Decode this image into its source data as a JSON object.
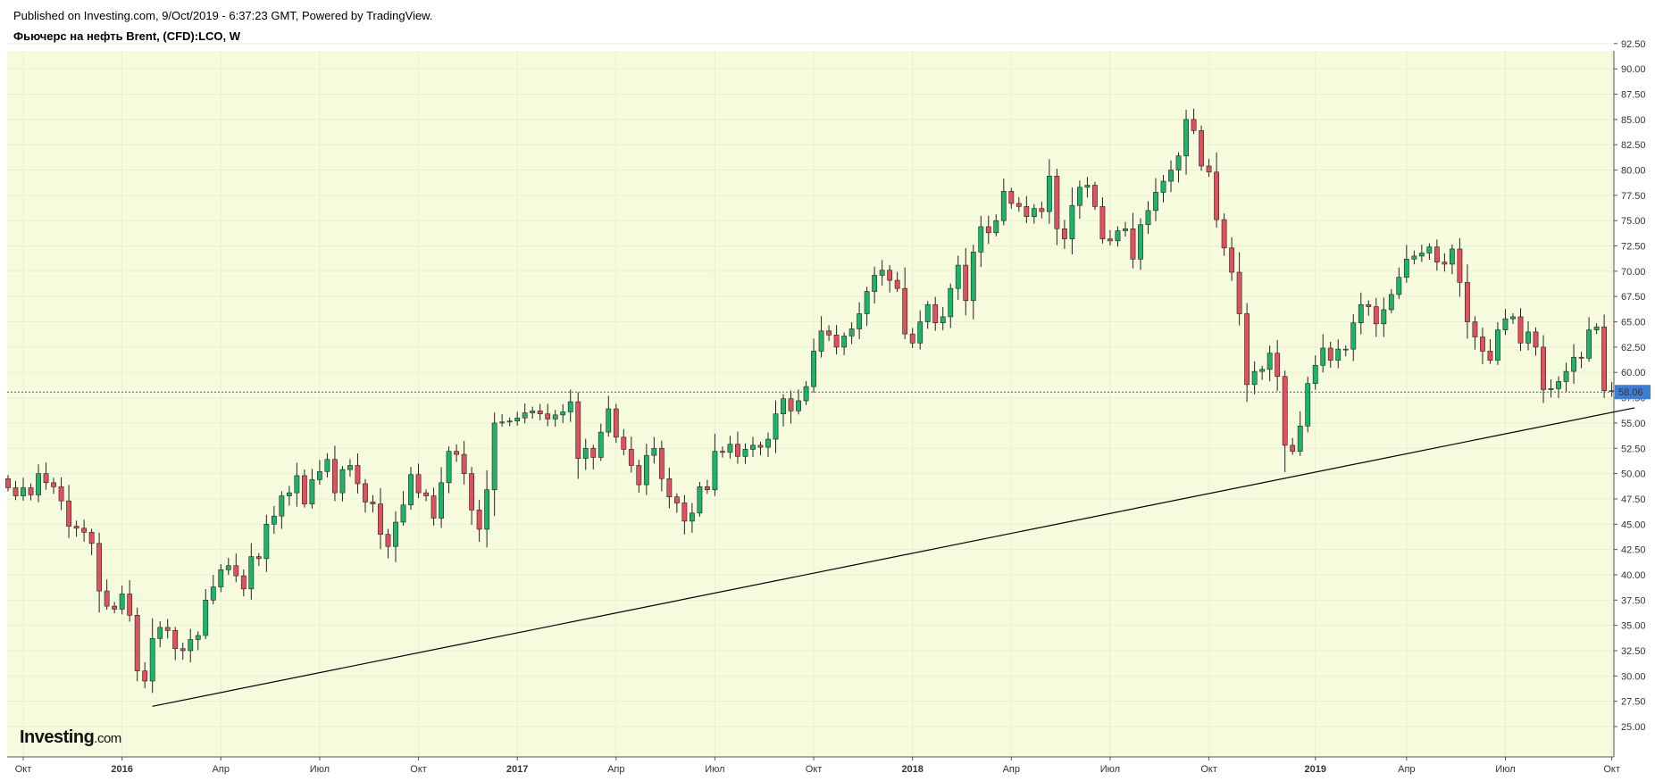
{
  "header": {
    "published_line": "Published on Investing.com, 9/Oct/2019 - 6:37:23 GMT, Powered by TradingView.",
    "symbol_line": "Фьючерс на нефть Brent, (CFD):LCO, W"
  },
  "logo": {
    "main": "Investing",
    "suffix": ".com"
  },
  "colors": {
    "background": "#f5fbdc",
    "bull": "#1eb36a",
    "bear": "#e0525b",
    "grid": "#e9efd2",
    "price_line": "#3c50c8",
    "price_label_bg": "#3c7dd8",
    "trendline": "#000000"
  },
  "chart_data": {
    "type": "candlestick",
    "timeframe": "W",
    "current_price": {
      "value": 58.06,
      "label": "58.06"
    },
    "y_axis": {
      "range": [
        23.5,
        94.5
      ],
      "ticks": [
        "25.00",
        "27.50",
        "30.00",
        "32.50",
        "35.00",
        "37.50",
        "40.00",
        "42.50",
        "45.00",
        "47.50",
        "50.00",
        "52.50",
        "55.00",
        "57.50",
        "60.00",
        "62.50",
        "65.00",
        "67.50",
        "70.00",
        "72.50",
        "75.00",
        "77.50",
        "80.00",
        "82.50",
        "85.00",
        "87.50",
        "90.00",
        "92.50"
      ]
    },
    "x_axis": {
      "first_week": "2015-09-21",
      "ticks": [
        {
          "label": "Окт",
          "bold": false,
          "week": 2
        },
        {
          "label": "2016",
          "bold": true,
          "week": 15
        },
        {
          "label": "Апр",
          "bold": false,
          "week": 28
        },
        {
          "label": "Июл",
          "bold": false,
          "week": 41
        },
        {
          "label": "Окт",
          "bold": false,
          "week": 54
        },
        {
          "label": "2017",
          "bold": true,
          "week": 67
        },
        {
          "label": "Апр",
          "bold": false,
          "week": 80
        },
        {
          "label": "Июл",
          "bold": false,
          "week": 93
        },
        {
          "label": "Окт",
          "bold": false,
          "week": 106
        },
        {
          "label": "2018",
          "bold": true,
          "week": 119
        },
        {
          "label": "Апр",
          "bold": false,
          "week": 132
        },
        {
          "label": "Июл",
          "bold": false,
          "week": 145
        },
        {
          "label": "Окт",
          "bold": false,
          "week": 158
        },
        {
          "label": "2019",
          "bold": true,
          "week": 172
        },
        {
          "label": "Апр",
          "bold": false,
          "week": 184
        },
        {
          "label": "Июл",
          "bold": false,
          "week": 197
        },
        {
          "label": "Окт",
          "bold": false,
          "week": 211
        }
      ]
    },
    "trendline": {
      "start": {
        "week": 19,
        "price": 27.0
      },
      "end": {
        "week": 214,
        "price": 56.5
      }
    },
    "closes": [
      48.6,
      47.8,
      48.6,
      47.9,
      50.0,
      49.1,
      48.7,
      47.3,
      44.8,
      44.6,
      44.2,
      43.1,
      38.4,
      36.9,
      36.6,
      38.1,
      36.0,
      30.5,
      29.5,
      33.7,
      34.8,
      34.5,
      32.7,
      32.5,
      33.6,
      34.0,
      37.5,
      38.8,
      40.5,
      40.9,
      39.9,
      38.6,
      41.8,
      41.6,
      45.0,
      45.8,
      47.8,
      48.1,
      49.8,
      47.0,
      49.4,
      50.2,
      51.4,
      48.1,
      50.4,
      50.8,
      49.0,
      47.2,
      47.0,
      44.0,
      42.8,
      45.2,
      46.9,
      49.9,
      48.1,
      47.8,
      45.6,
      49.1,
      52.2,
      51.9,
      50.0,
      46.4,
      44.5,
      48.4,
      55.0,
      55.1,
      55.2,
      55.5,
      56.0,
      56.2,
      55.9,
      55.4,
      55.8,
      56.1,
      57.1,
      51.5,
      52.5,
      51.6,
      54.1,
      56.4,
      53.6,
      52.4,
      50.8,
      48.9,
      51.8,
      52.5,
      49.5,
      47.7,
      47.1,
      45.3,
      46.1,
      48.7,
      48.4,
      52.2,
      52.1,
      52.9,
      51.7,
      52.4,
      52.8,
      52.6,
      53.4,
      55.9,
      57.4,
      56.2,
      57.2,
      58.6,
      62.1,
      64.1,
      63.7,
      62.5,
      63.6,
      64.3,
      65.8,
      68.0,
      69.6,
      70.1,
      69.1,
      68.3,
      63.8,
      62.9,
      65.0,
      66.7,
      64.9,
      65.5,
      68.3,
      70.6,
      67.1,
      71.9,
      74.4,
      73.8,
      75.0,
      77.9,
      76.7,
      76.4,
      75.4,
      76.2,
      75.9,
      79.4,
      74.2,
      73.2,
      76.5,
      78.3,
      78.5,
      76.4,
      73.2,
      73.0,
      74.0,
      74.2,
      71.2,
      74.6,
      76.0,
      77.8,
      78.9,
      80.0,
      81.4,
      85.0,
      83.9,
      80.4,
      79.8,
      75.1,
      72.3,
      69.9,
      65.8,
      58.8,
      60.1,
      60.3,
      61.9,
      59.6,
      52.8,
      52.2,
      54.7,
      58.9,
      60.7,
      62.4,
      61.2,
      62.3,
      62.3,
      64.9,
      66.7,
      66.5,
      64.8,
      66.2,
      67.7,
      69.4,
      71.2,
      71.5,
      71.8,
      72.4,
      70.9,
      70.7,
      72.2,
      68.9,
      65.0,
      63.5,
      62.1,
      61.2,
      64.2,
      65.3,
      65.5,
      62.9,
      64.0,
      62.5,
      58.3,
      58.4,
      59.1,
      60.1,
      61.5,
      61.4,
      64.2,
      64.5,
      58.2,
      58.1
    ]
  }
}
